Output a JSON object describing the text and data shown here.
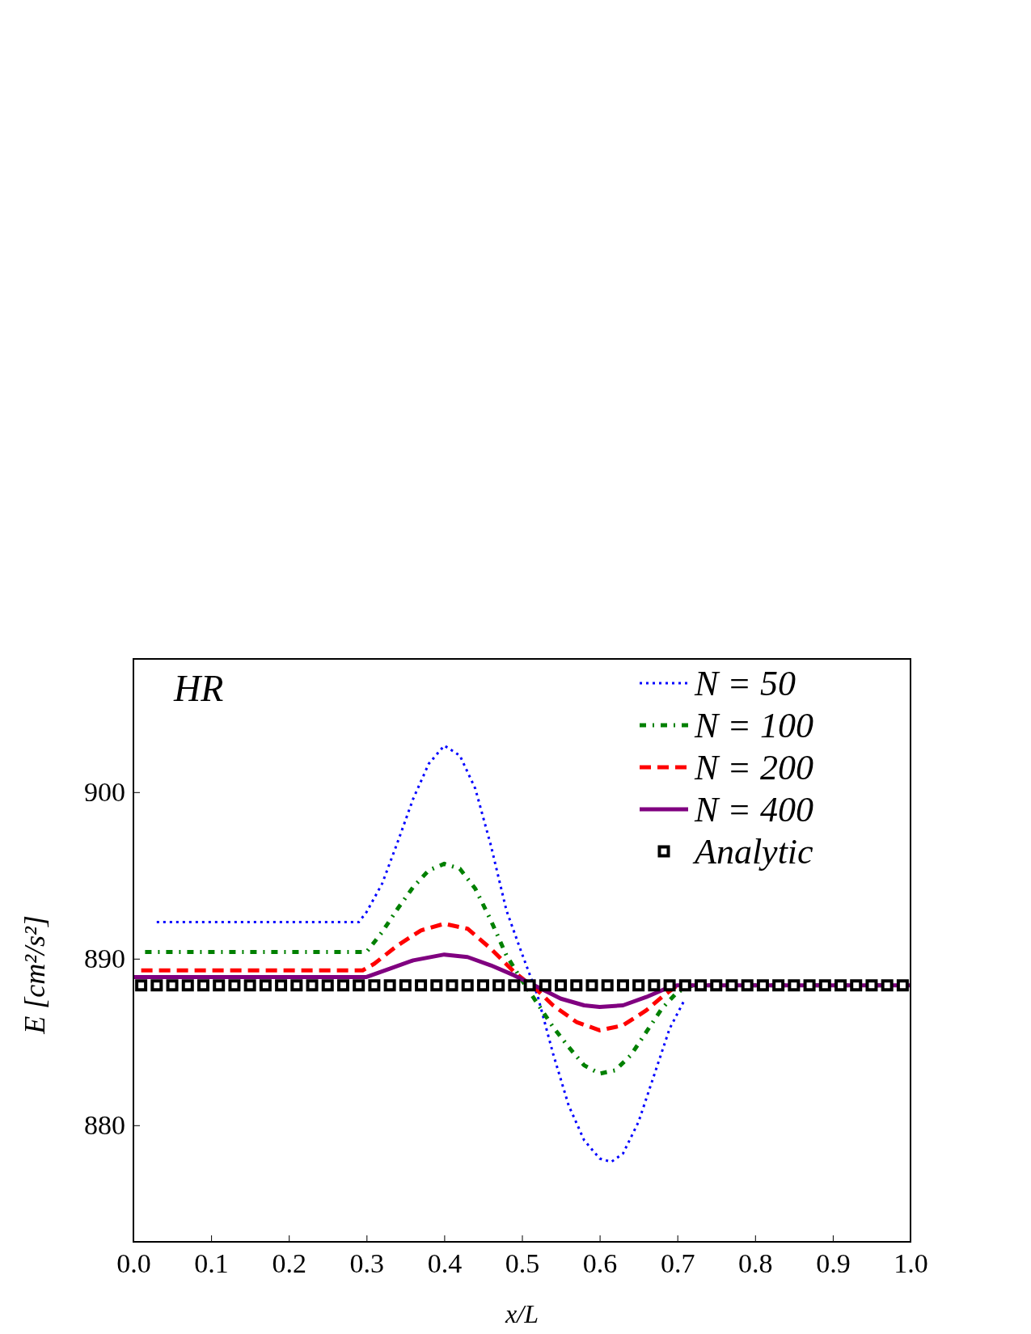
{
  "chart_data": {
    "type": "line",
    "xlabel": "x/L",
    "ylabel": "E [cm²/s²]",
    "annotations": [
      "HR"
    ],
    "xlim": [
      0,
      1
    ],
    "xticks": [
      {
        "value": 0,
        "label": "0.0"
      },
      {
        "value": 0.1,
        "label": "0.1"
      },
      {
        "value": 0.2,
        "label": "0.2"
      },
      {
        "value": 0.3,
        "label": "0.3"
      },
      {
        "value": 0.4,
        "label": "0.4"
      },
      {
        "value": 0.5,
        "label": "0.5"
      },
      {
        "value": 0.6,
        "label": "0.6"
      },
      {
        "value": 0.7,
        "label": "0.7"
      },
      {
        "value": 0.8,
        "label": "0.8"
      },
      {
        "value": 0.9,
        "label": "0.9"
      },
      {
        "value": 1,
        "label": "1.0"
      }
    ],
    "ylim": [
      873,
      908
    ],
    "yticks": [
      880,
      890,
      900
    ],
    "grid": false,
    "legend": "top right",
    "series": [
      {
        "name": "N = 50",
        "color": "#0000ff",
        "line_style": "dotted",
        "x": [
          0.03,
          0.29,
          0.3,
          0.32,
          0.34,
          0.36,
          0.38,
          0.4,
          0.42,
          0.44,
          0.46,
          0.48,
          0.5,
          0.52,
          0.54,
          0.56,
          0.58,
          0.6,
          0.615,
          0.63,
          0.65,
          0.67,
          0.69,
          0.71
        ],
        "values": [
          892.2,
          892.2,
          892.8,
          894.5,
          897,
          899.6,
          901.7,
          902.8,
          902.2,
          900.2,
          896.8,
          892.9,
          890.3,
          887.8,
          884.3,
          881.2,
          879.1,
          878.0,
          877.8,
          878.3,
          880.2,
          883.0,
          885.8,
          887.6
        ]
      },
      {
        "name": "N = 100",
        "color": "#008000",
        "line_style": "dashdot",
        "x": [
          0.015,
          0.3,
          0.32,
          0.34,
          0.36,
          0.38,
          0.4,
          0.42,
          0.44,
          0.46,
          0.48,
          0.5,
          0.52,
          0.54,
          0.56,
          0.58,
          0.6,
          0.62,
          0.64,
          0.66,
          0.68,
          0.7,
          0.72,
          1.0
        ],
        "values": [
          890.4,
          890.4,
          891.6,
          893.0,
          894.3,
          895.3,
          895.7,
          895.4,
          894.2,
          892.3,
          890.2,
          888.7,
          887.3,
          885.9,
          884.7,
          883.6,
          883.1,
          883.3,
          884.2,
          885.6,
          887.0,
          888.0,
          888.4,
          888.4
        ]
      },
      {
        "name": "N = 200",
        "color": "#ff0000",
        "line_style": "dashed",
        "x": [
          0.01,
          0.295,
          0.31,
          0.34,
          0.37,
          0.4,
          0.43,
          0.46,
          0.49,
          0.52,
          0.54,
          0.57,
          0.6,
          0.63,
          0.66,
          0.68,
          0.7
        ],
        "values": [
          889.3,
          889.3,
          889.7,
          890.8,
          891.7,
          892.1,
          891.8,
          890.6,
          889.2,
          888.1,
          887.2,
          886.2,
          885.7,
          886.0,
          886.9,
          887.7,
          888.4
        ]
      },
      {
        "name": "N = 400",
        "color": "#800080",
        "line_style": "solid",
        "x": [
          0,
          0.3,
          0.33,
          0.36,
          0.4,
          0.43,
          0.46,
          0.49,
          0.52,
          0.55,
          0.58,
          0.6,
          0.63,
          0.66,
          0.69,
          0.7,
          1.0
        ],
        "values": [
          888.9,
          888.9,
          889.4,
          889.9,
          890.25,
          890.1,
          889.6,
          889.0,
          888.3,
          887.6,
          887.2,
          887.1,
          887.2,
          887.7,
          888.3,
          888.4,
          888.4
        ]
      },
      {
        "name": "Analytic",
        "type": "scatter",
        "marker": "square",
        "color": "#000000",
        "x": [
          0.01,
          0.03,
          0.05,
          0.07,
          0.09,
          0.11,
          0.13,
          0.15,
          0.17,
          0.19,
          0.21,
          0.23,
          0.25,
          0.27,
          0.29,
          0.31,
          0.33,
          0.35,
          0.37,
          0.39,
          0.41,
          0.43,
          0.45,
          0.47,
          0.49,
          0.51,
          0.53,
          0.55,
          0.57,
          0.59,
          0.61,
          0.63,
          0.65,
          0.67,
          0.69,
          0.71,
          0.73,
          0.75,
          0.77,
          0.79,
          0.81,
          0.83,
          0.85,
          0.87,
          0.89,
          0.91,
          0.93,
          0.95,
          0.97,
          0.99
        ],
        "values": [
          888.4,
          888.4,
          888.4,
          888.4,
          888.4,
          888.4,
          888.4,
          888.4,
          888.4,
          888.4,
          888.4,
          888.4,
          888.4,
          888.4,
          888.4,
          888.4,
          888.4,
          888.4,
          888.4,
          888.4,
          888.4,
          888.4,
          888.4,
          888.4,
          888.4,
          888.4,
          888.4,
          888.4,
          888.4,
          888.4,
          888.4,
          888.4,
          888.4,
          888.4,
          888.4,
          888.4,
          888.4,
          888.4,
          888.4,
          888.4,
          888.4,
          888.4,
          888.4,
          888.4,
          888.4,
          888.4,
          888.4,
          888.4,
          888.4,
          888.4
        ]
      }
    ]
  }
}
